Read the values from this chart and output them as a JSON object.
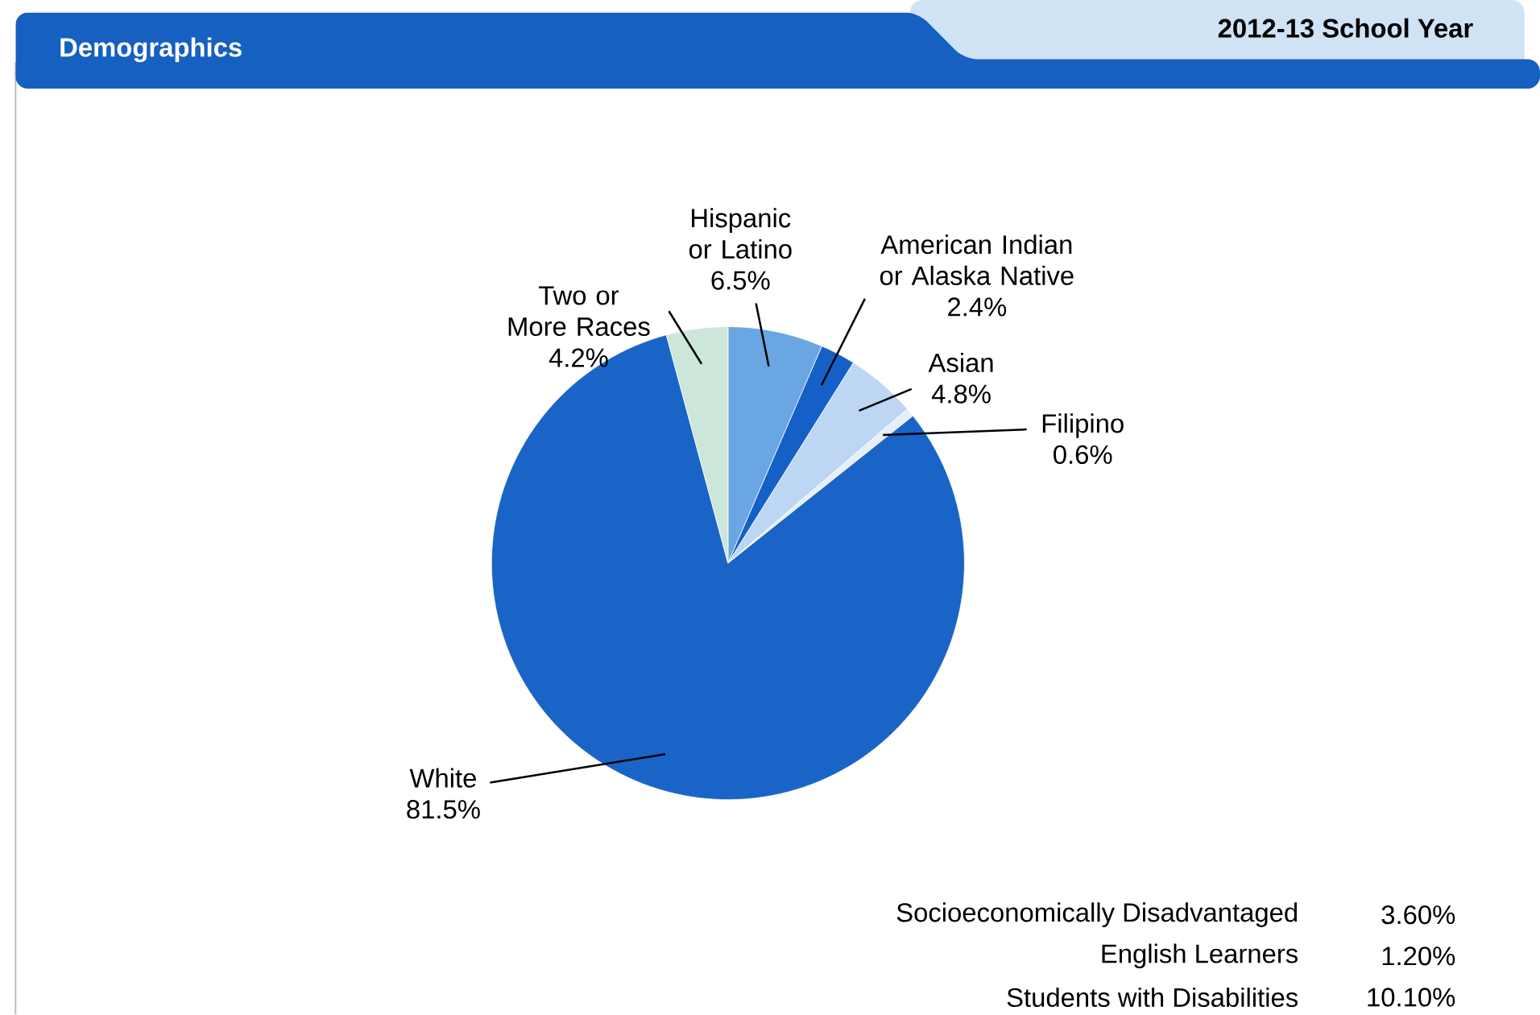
{
  "chart_data": {
    "type": "pie",
    "title": "Demographics",
    "subtitle": "2012-13 School Year",
    "categories": [
      "Hispanic or Latino",
      "American Indian or Alaska Native",
      "Asian",
      "Filipino",
      "White",
      "Two or More Races"
    ],
    "values": [
      6.5,
      2.4,
      4.8,
      0.6,
      81.5,
      4.2
    ],
    "colors": [
      "#6aa6e2",
      "#1460c6",
      "#bcd6f4",
      "#e6eef8",
      "#1a64c8",
      "#cde6da"
    ],
    "value_labels": [
      "6.5%",
      "2.4%",
      "4.8%",
      "0.6%",
      "81.5%",
      "4.2%"
    ],
    "annotations": [
      "Socioeconomically Disadvantaged",
      "3.60%",
      "English Learners",
      "1.20%",
      "Students with Disabilities",
      "10.10%"
    ]
  }
}
